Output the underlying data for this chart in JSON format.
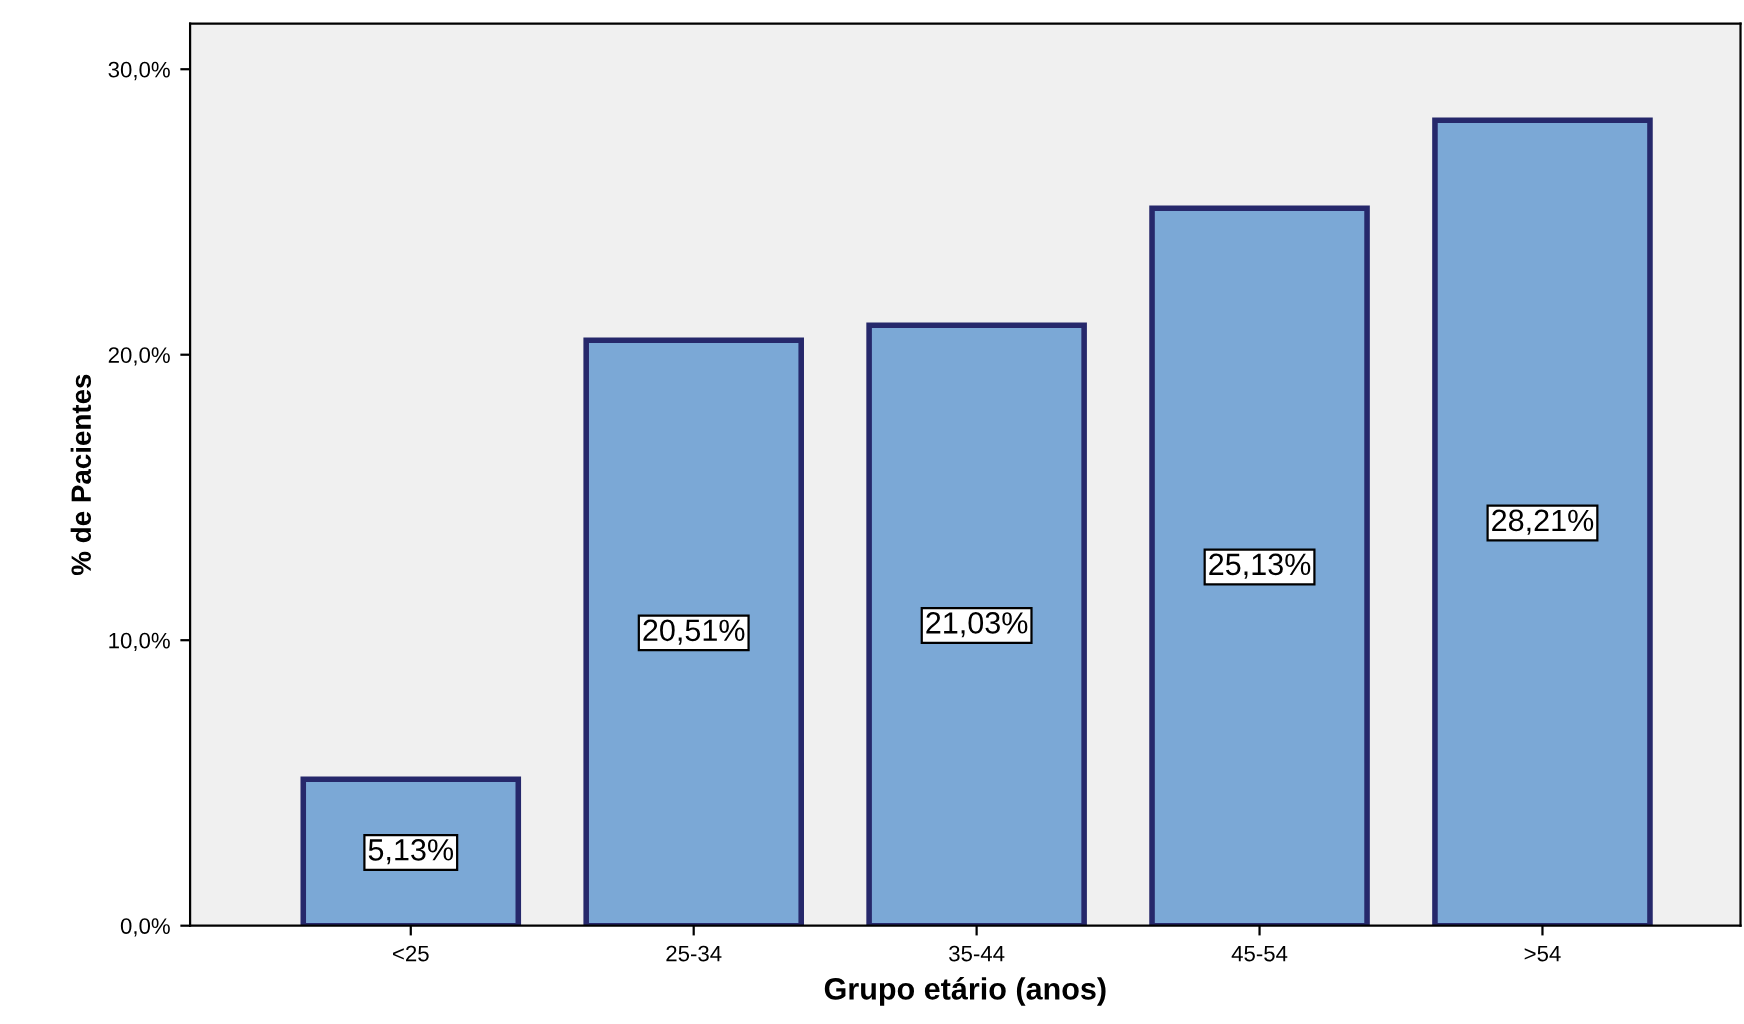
{
  "chart_data": {
    "type": "bar",
    "xlabel": "Grupo etário (anos)",
    "ylabel": "% de Pacientes",
    "categories": [
      "<25",
      "25-34",
      "35-44",
      "45-54",
      ">54"
    ],
    "values": [
      5.13,
      20.51,
      21.03,
      25.13,
      28.21
    ],
    "value_labels": [
      "5,13%",
      "20,51%",
      "21,03%",
      "25,13%",
      "28,21%"
    ],
    "color": "#7ba8d6",
    "ylim": [
      0,
      31.6
    ],
    "yticks": [
      {
        "value": 0,
        "label": "0,0%"
      },
      {
        "value": 10,
        "label": "10,0%"
      },
      {
        "value": 20,
        "label": "20,0%"
      },
      {
        "value": 30,
        "label": "30,0%"
      }
    ],
    "grid": false
  }
}
